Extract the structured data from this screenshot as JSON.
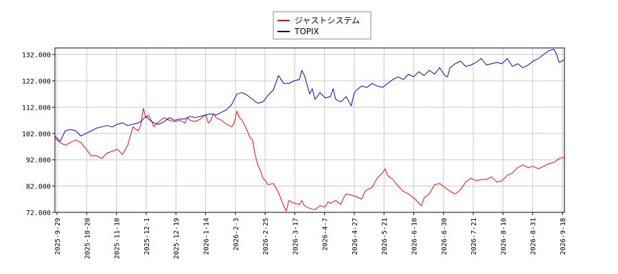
{
  "chart_data": {
    "type": "line",
    "title": "",
    "xlabel": "",
    "ylabel": "",
    "grid": true,
    "legend_position": "top-center",
    "ylim": [
      72,
      134.5
    ],
    "yticks": [
      "72.000",
      "82.000",
      "92.000",
      "102.000",
      "112.000",
      "122.000",
      "132.000"
    ],
    "xtick_labels": [
      "2025-9-29",
      "2025-10-20",
      "2025-11-10",
      "2025-12-1",
      "2025-12-19",
      "2026-1-14",
      "2026-2-3",
      "2026-2-25",
      "2026-3-17",
      "2026-4-7",
      "2026-4-27",
      "2026-5-21",
      "2026-6-10",
      "2026-6-30",
      "2026-7-21",
      "2026-8-10",
      "2026-8-31",
      "2026-9-18"
    ],
    "series": [
      {
        "name": "ジャストシステム",
        "color": "#ff0000",
        "values": [
          [
            0,
            100.2
          ],
          [
            1,
            98.5
          ],
          [
            2,
            97.5
          ],
          [
            3,
            98.5
          ],
          [
            4,
            99.5
          ],
          [
            5,
            98.5
          ],
          [
            7,
            93.5
          ],
          [
            8,
            93.5
          ],
          [
            9,
            92.5
          ],
          [
            10,
            94.5
          ],
          [
            11,
            95.2
          ],
          [
            12,
            96.0
          ],
          [
            13,
            94.0
          ],
          [
            14,
            97.5
          ],
          [
            15,
            104.5
          ],
          [
            16,
            103.0
          ],
          [
            16.5,
            105.0
          ],
          [
            17,
            111.5
          ],
          [
            17.5,
            108.0
          ],
          [
            18,
            109.0
          ],
          [
            18.5,
            107.0
          ],
          [
            19,
            104.5
          ],
          [
            20,
            106.5
          ],
          [
            21,
            108.0
          ],
          [
            22,
            107.0
          ],
          [
            23,
            106.5
          ],
          [
            24,
            107.0
          ],
          [
            25,
            106.0
          ],
          [
            25.5,
            108.0
          ],
          [
            26,
            107.0
          ],
          [
            27,
            106.5
          ],
          [
            28,
            107.5
          ],
          [
            28.5,
            108.5
          ],
          [
            29,
            109.0
          ],
          [
            29.5,
            106.0
          ],
          [
            30,
            107.0
          ],
          [
            30.5,
            109.5
          ],
          [
            31,
            108.0
          ],
          [
            32,
            107.0
          ],
          [
            33,
            105.5
          ],
          [
            34,
            104.5
          ],
          [
            34.5,
            106.0
          ],
          [
            35,
            110.5
          ],
          [
            35.5,
            108.0
          ],
          [
            36,
            107.0
          ],
          [
            36.5,
            105.0
          ],
          [
            37,
            103.0
          ],
          [
            37.5,
            100.5
          ],
          [
            38,
            99.5
          ],
          [
            38.5,
            94.0
          ],
          [
            39,
            90.0
          ],
          [
            39.5,
            88.0
          ],
          [
            40,
            85.0
          ],
          [
            40.5,
            84.0
          ],
          [
            41,
            82.5
          ],
          [
            42,
            83.0
          ],
          [
            43,
            79.5
          ],
          [
            44,
            74.5
          ],
          [
            44.5,
            72.5
          ],
          [
            45,
            76.5
          ],
          [
            45.5,
            76.0
          ],
          [
            46,
            75.5
          ],
          [
            47,
            75.0
          ],
          [
            47.5,
            76.5
          ],
          [
            48,
            74.5
          ],
          [
            49,
            73.5
          ],
          [
            50,
            73.0
          ],
          [
            51,
            74.5
          ],
          [
            52,
            74.0
          ],
          [
            52.5,
            76.0
          ],
          [
            53,
            75.5
          ],
          [
            54,
            76.5
          ],
          [
            55,
            75.0
          ],
          [
            55.5,
            77.5
          ],
          [
            56,
            79.0
          ],
          [
            57,
            78.5
          ],
          [
            58,
            78.0
          ],
          [
            59,
            77.0
          ],
          [
            59.5,
            79.5
          ],
          [
            60,
            80.5
          ],
          [
            61,
            81.5
          ],
          [
            62,
            85.0
          ],
          [
            63,
            87.0
          ],
          [
            63.5,
            88.5
          ],
          [
            64,
            86.0
          ],
          [
            65,
            84.5
          ],
          [
            66,
            82.0
          ],
          [
            67,
            80.0
          ],
          [
            68,
            79.0
          ],
          [
            69,
            77.5
          ],
          [
            70,
            75.5
          ],
          [
            70.5,
            74.5
          ],
          [
            71,
            77.5
          ],
          [
            72,
            79.0
          ],
          [
            73,
            82.5
          ],
          [
            74,
            83.0
          ],
          [
            75,
            81.5
          ],
          [
            76,
            80.0
          ],
          [
            77,
            79.0
          ],
          [
            78,
            80.5
          ],
          [
            79,
            83.5
          ],
          [
            80,
            85.0
          ],
          [
            81,
            84.0
          ],
          [
            82,
            84.5
          ],
          [
            83,
            84.5
          ],
          [
            84,
            85.5
          ],
          [
            85,
            83.5
          ],
          [
            86,
            84.0
          ],
          [
            87,
            86.0
          ],
          [
            88,
            87.0
          ],
          [
            89,
            89.0
          ],
          [
            90,
            90.0
          ],
          [
            91,
            89.0
          ],
          [
            92,
            89.5
          ],
          [
            93,
            88.5
          ],
          [
            94,
            89.5
          ],
          [
            95,
            90.5
          ],
          [
            96,
            91.0
          ],
          [
            97,
            92.5
          ],
          [
            98,
            93.0
          ]
        ]
      },
      {
        "name": "TOPIX",
        "color": "#0000cc",
        "values": [
          [
            0,
            101.0
          ],
          [
            1,
            99.0
          ],
          [
            2,
            103.0
          ],
          [
            3,
            103.5
          ],
          [
            4,
            103.0
          ],
          [
            5,
            101.0
          ],
          [
            6,
            102.0
          ],
          [
            7,
            103.0
          ],
          [
            8,
            104.0
          ],
          [
            9,
            104.5
          ],
          [
            10,
            105.0
          ],
          [
            11,
            104.5
          ],
          [
            12,
            105.5
          ],
          [
            13,
            106.0
          ],
          [
            14,
            105.0
          ],
          [
            15,
            105.5
          ],
          [
            16,
            106.0
          ],
          [
            16.5,
            106.5
          ],
          [
            17,
            107.5
          ],
          [
            17.5,
            108.5
          ],
          [
            18,
            107.5
          ],
          [
            19,
            106.0
          ],
          [
            20,
            105.5
          ],
          [
            21,
            106.5
          ],
          [
            22,
            108.0
          ],
          [
            23,
            107.0
          ],
          [
            24,
            107.5
          ],
          [
            25,
            107.5
          ],
          [
            26,
            108.5
          ],
          [
            27,
            108.0
          ],
          [
            28,
            108.5
          ],
          [
            29,
            109.0
          ],
          [
            30,
            109.5
          ],
          [
            31,
            109.0
          ],
          [
            32,
            110.0
          ],
          [
            33,
            111.0
          ],
          [
            34,
            113.0
          ],
          [
            35,
            117.0
          ],
          [
            36,
            117.5
          ],
          [
            37,
            116.5
          ],
          [
            38,
            115.0
          ],
          [
            39,
            113.5
          ],
          [
            40,
            114.0
          ],
          [
            41,
            116.5
          ],
          [
            42,
            118.5
          ],
          [
            43,
            124.0
          ],
          [
            44,
            121.0
          ],
          [
            45,
            121.0
          ],
          [
            46,
            122.0
          ],
          [
            47,
            122.5
          ],
          [
            47.5,
            126.0
          ],
          [
            48,
            124.0
          ],
          [
            49,
            117.0
          ],
          [
            49.5,
            119.0
          ],
          [
            50,
            115.0
          ],
          [
            51,
            117.5
          ],
          [
            52,
            115.5
          ],
          [
            53,
            116.0
          ],
          [
            53.5,
            119.0
          ],
          [
            54,
            115.0
          ],
          [
            55,
            114.0
          ],
          [
            56,
            116.0
          ],
          [
            57,
            112.5
          ],
          [
            57.5,
            117.0
          ],
          [
            58,
            118.5
          ],
          [
            59,
            120.0
          ],
          [
            60,
            119.5
          ],
          [
            61,
            121.0
          ],
          [
            62,
            120.0
          ],
          [
            63,
            119.5
          ],
          [
            64,
            121.0
          ],
          [
            65,
            122.5
          ],
          [
            66,
            123.5
          ],
          [
            67,
            122.5
          ],
          [
            68,
            124.5
          ],
          [
            69,
            123.5
          ],
          [
            70,
            125.5
          ],
          [
            71,
            124.0
          ],
          [
            72,
            126.0
          ],
          [
            73,
            124.5
          ],
          [
            74,
            127.0
          ],
          [
            75,
            124.0
          ],
          [
            75.5,
            123.5
          ],
          [
            76,
            127.0
          ],
          [
            77,
            128.5
          ],
          [
            78,
            129.5
          ],
          [
            79,
            127.5
          ],
          [
            80,
            128.0
          ],
          [
            81,
            129.0
          ],
          [
            82,
            130.5
          ],
          [
            83,
            128.0
          ],
          [
            84,
            128.5
          ],
          [
            85,
            129.0
          ],
          [
            86,
            128.5
          ],
          [
            87,
            130.5
          ],
          [
            88,
            127.5
          ],
          [
            89,
            128.5
          ],
          [
            90,
            127.0
          ],
          [
            91,
            128.0
          ],
          [
            92,
            129.5
          ],
          [
            93,
            130.5
          ],
          [
            94,
            132.0
          ],
          [
            95,
            133.5
          ],
          [
            96,
            134.0
          ],
          [
            96.5,
            132.0
          ],
          [
            97,
            129.0
          ],
          [
            98,
            130.0
          ]
        ]
      }
    ]
  },
  "ui": {
    "background": "#ffffff",
    "grid_color": "#c8c8c8",
    "axis_color": "#000000"
  }
}
